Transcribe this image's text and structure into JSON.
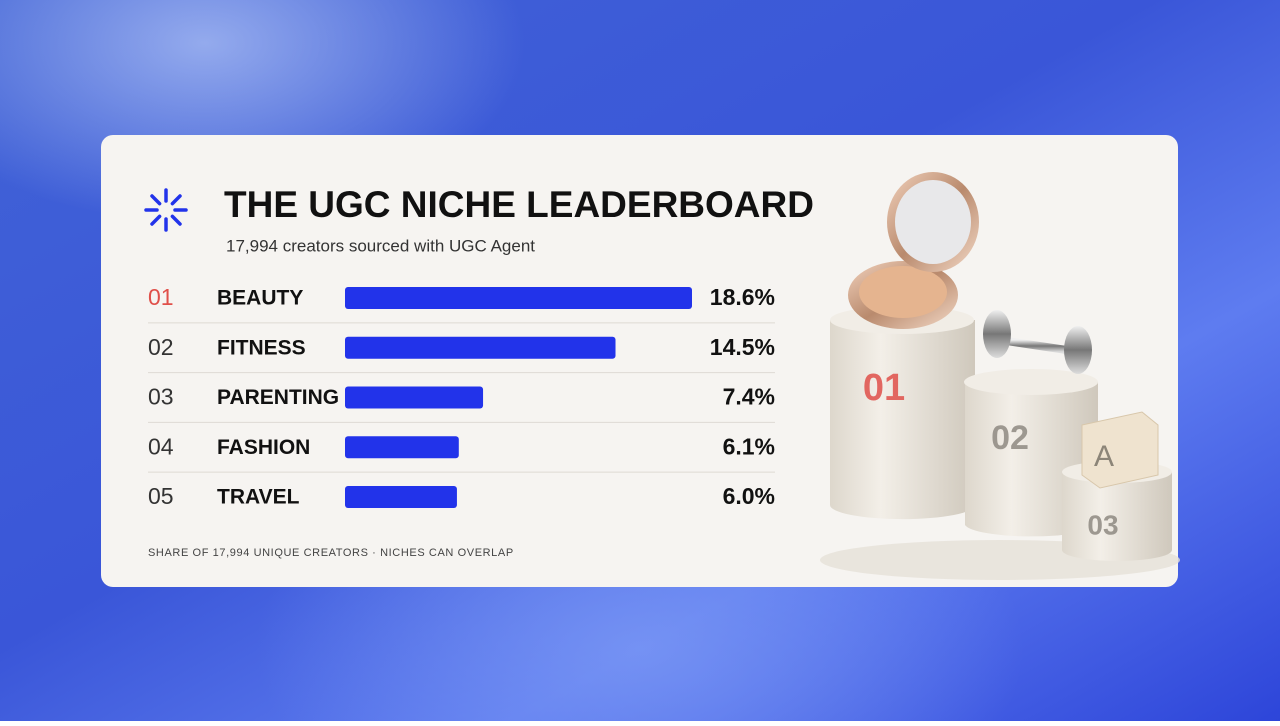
{
  "chart_data": {
    "type": "bar",
    "orientation": "horizontal",
    "title": "THE UGC NICHE LEADERBOARD",
    "subtitle": "17,994 creators sourced with UGC Agent",
    "ranks": [
      "01",
      "02",
      "03",
      "04",
      "05"
    ],
    "categories": [
      "BEAUTY",
      "FITNESS",
      "PARENTING",
      "FASHION",
      "TRAVEL"
    ],
    "values": [
      18.6,
      14.5,
      7.4,
      6.1,
      6.0
    ],
    "value_labels": [
      "18.6%",
      "14.5%",
      "7.4%",
      "6.1%",
      "6.0%"
    ],
    "color": "#2233ea",
    "highlight_color": "#e0504a",
    "footnote": "SHARE OF 17,994 UNIQUE CREATORS · NICHES CAN OVERLAP"
  },
  "illustration": {
    "block_text": "A"
  }
}
